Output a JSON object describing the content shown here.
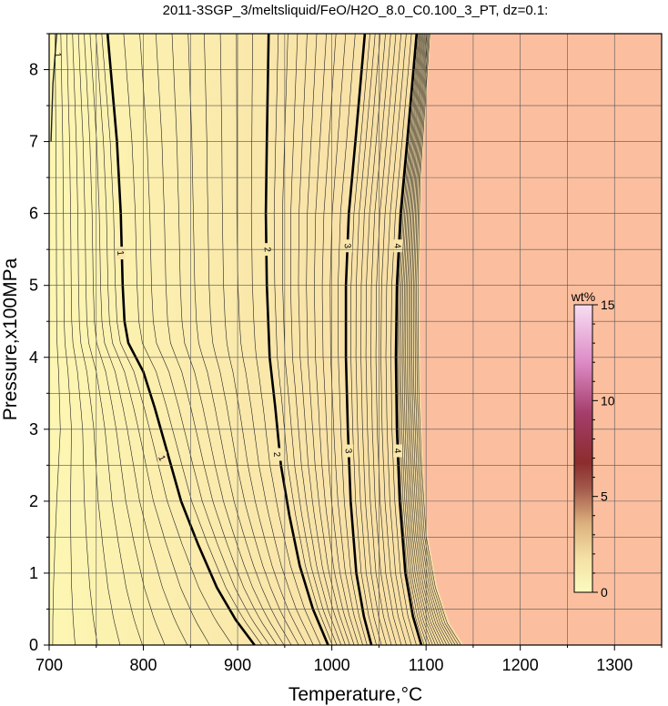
{
  "chart_data": {
    "type": "heatmap",
    "title": "2011-3SGP_3/meltsliquid/FeO/H2O_8.0_C0.100_3_PT, dz=0.1:",
    "xlabel": "Temperature,°C",
    "ylabel": "Pressure,x100MPa",
    "xlim": [
      700,
      1350
    ],
    "ylim": [
      0,
      8.5
    ],
    "x_ticks": [
      700,
      800,
      900,
      1000,
      1100,
      1200,
      1300
    ],
    "y_ticks": [
      0,
      1,
      2,
      3,
      4,
      5,
      6,
      7,
      8
    ],
    "grid": true,
    "contour_interval": 0.1,
    "major_contours": [
      {
        "label": "1",
        "points": [
          [
            762,
            8.5
          ],
          [
            772,
            7.0
          ],
          [
            776,
            6.0
          ],
          [
            778,
            5.0
          ],
          [
            780,
            4.5
          ],
          [
            784,
            4.2
          ],
          [
            800,
            3.8
          ],
          [
            812,
            3.3
          ],
          [
            825,
            2.7
          ],
          [
            840,
            2.0
          ],
          [
            858,
            1.4
          ],
          [
            878,
            0.8
          ],
          [
            898,
            0.35
          ],
          [
            918,
            0
          ]
        ],
        "label_at": [
          [
            776,
            5.45
          ],
          [
            820,
            2.6
          ]
        ]
      },
      {
        "label": "2",
        "points": [
          [
            933,
            8.5
          ],
          [
            931,
            7.0
          ],
          [
            930,
            6.0
          ],
          [
            931,
            5.0
          ],
          [
            934,
            4.0
          ],
          [
            940,
            3.3
          ],
          [
            946,
            2.5
          ],
          [
            955,
            1.8
          ],
          [
            966,
            1.1
          ],
          [
            980,
            0.5
          ],
          [
            996,
            0
          ]
        ],
        "label_at": [
          [
            932,
            5.5
          ],
          [
            942,
            2.65
          ]
        ]
      },
      {
        "label": "3",
        "points": [
          [
            1035,
            8.5
          ],
          [
            1025,
            7.0
          ],
          [
            1018,
            6.0
          ],
          [
            1015,
            5.0
          ],
          [
            1015,
            4.0
          ],
          [
            1017,
            3.0
          ],
          [
            1020,
            2.0
          ],
          [
            1026,
            1.0
          ],
          [
            1034,
            0.4
          ],
          [
            1042,
            0
          ]
        ],
        "label_at": [
          [
            1017,
            5.55
          ],
          [
            1018,
            2.7
          ]
        ]
      },
      {
        "label": "4",
        "points": [
          [
            1090,
            8.5
          ],
          [
            1080,
            7.0
          ],
          [
            1073,
            6.0
          ],
          [
            1069,
            5.0
          ],
          [
            1068,
            4.0
          ],
          [
            1069,
            3.0
          ],
          [
            1072,
            2.0
          ],
          [
            1078,
            1.0
          ],
          [
            1086,
            0.4
          ],
          [
            1095,
            0
          ]
        ],
        "label_at": [
          [
            1070,
            5.55
          ],
          [
            1070,
            2.7
          ]
        ]
      }
    ],
    "minor_contours_near_top_left": {
      "label": "1",
      "points": [
        [
          708,
          8.5
        ],
        [
          704,
          7.8
        ],
        [
          702,
          7.0
        ]
      ]
    },
    "saturation_boundary": [
      [
        1105,
        8.5
      ],
      [
        1100,
        7.5
      ],
      [
        1095,
        6.5
      ],
      [
        1093,
        5.0
      ],
      [
        1094,
        3.5
      ],
      [
        1097,
        2.5
      ],
      [
        1102,
        1.5
      ],
      [
        1112,
        0.8
      ],
      [
        1125,
        0.3
      ],
      [
        1140,
        0
      ]
    ],
    "colorbar": {
      "label": "wt%",
      "range": [
        0,
        15
      ],
      "ticks": [
        0,
        5,
        10,
        15
      ],
      "colors": [
        "#fbfbc0",
        "#f5e4a6",
        "#e9c288",
        "#c89070",
        "#8b3a3a",
        "#a64268",
        "#d487b8",
        "#f3ccec"
      ]
    },
    "saturated_region_color": "#fbbf9f"
  }
}
